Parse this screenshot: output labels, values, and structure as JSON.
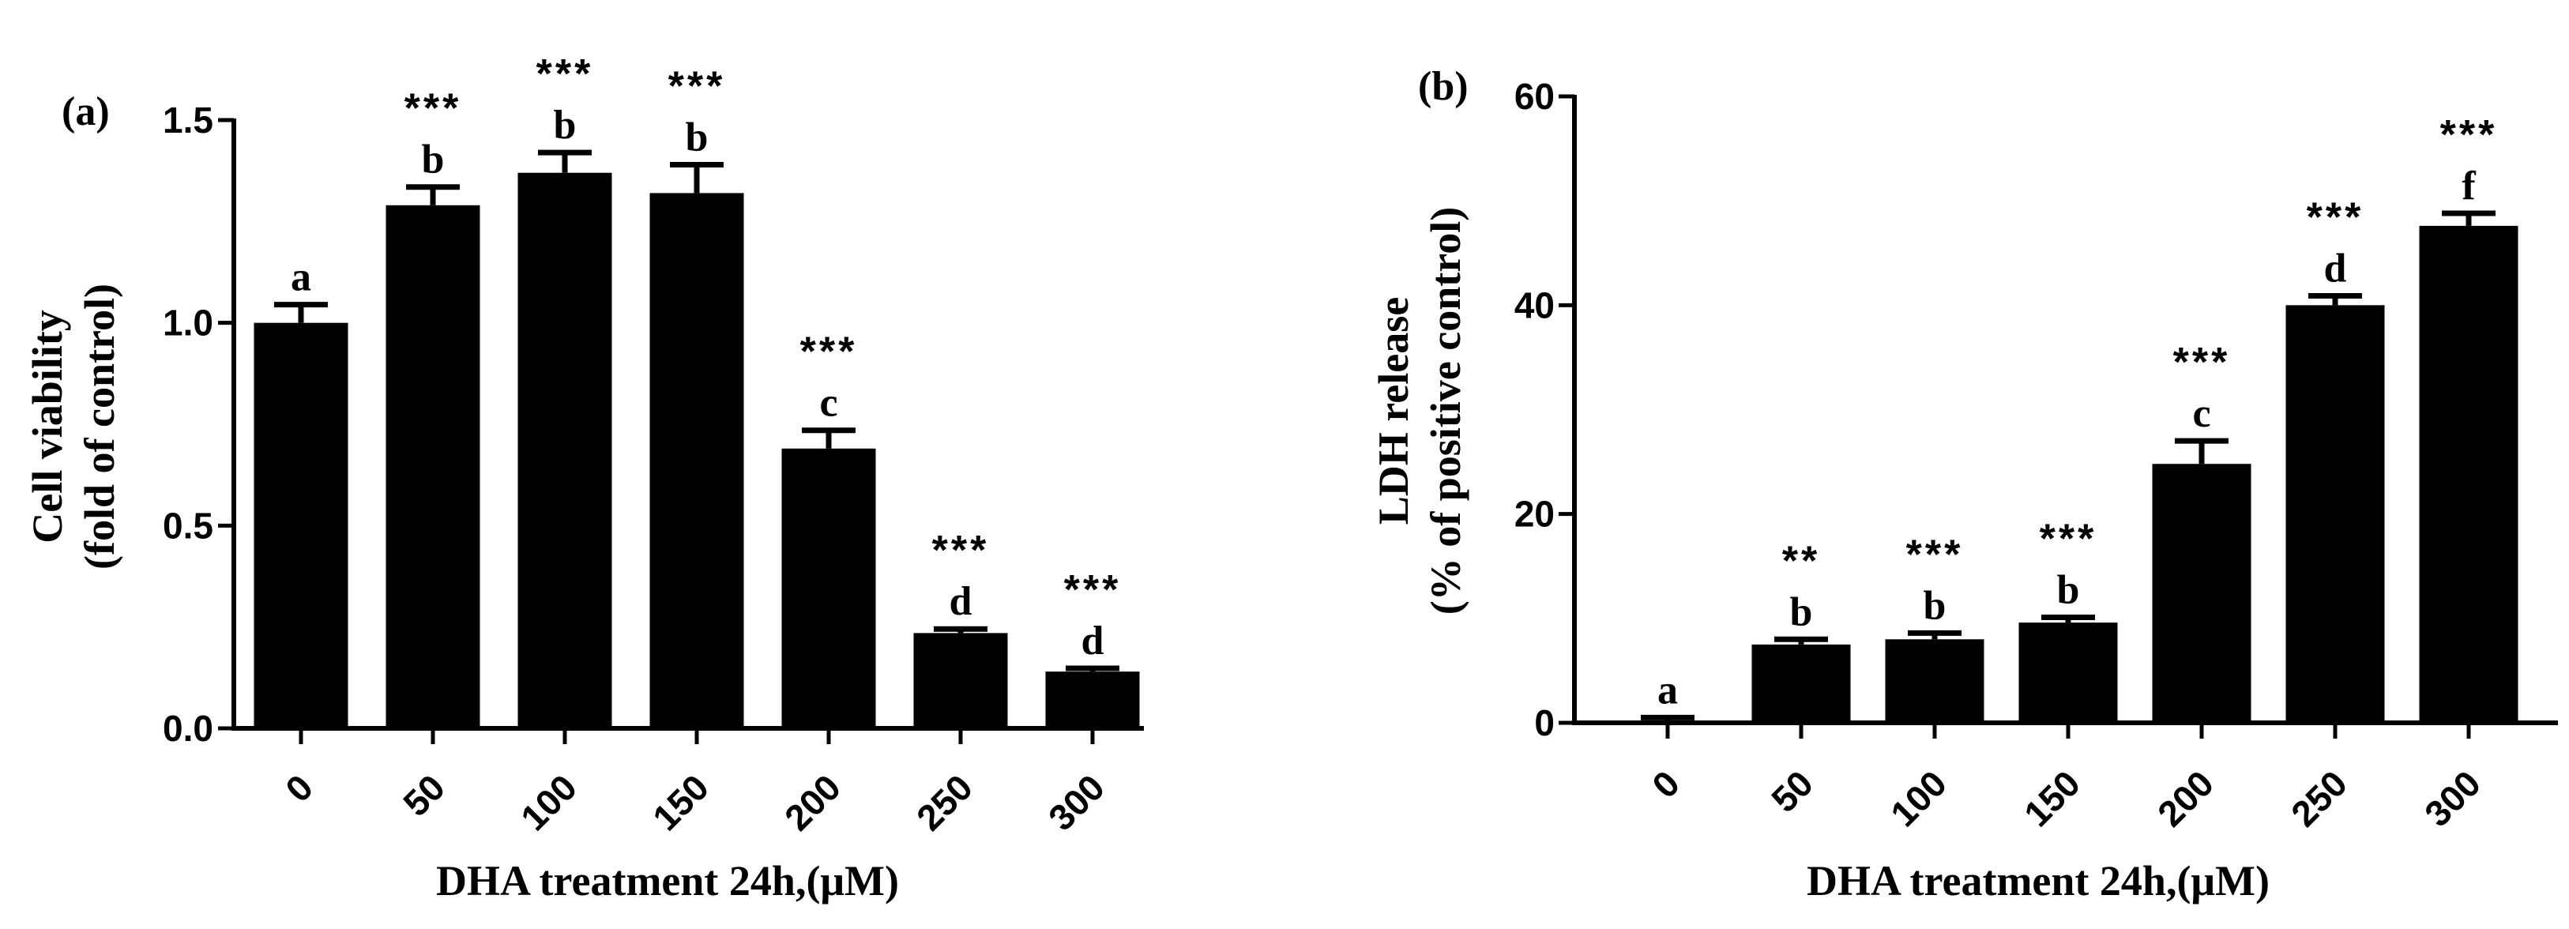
{
  "chart_data": [
    {
      "type": "bar",
      "panel_label": "(a)",
      "categories": [
        "0",
        "50",
        "100",
        "150",
        "200",
        "250",
        "300"
      ],
      "values": [
        1.0,
        1.29,
        1.37,
        1.32,
        0.69,
        0.235,
        0.14
      ],
      "errors": [
        0.045,
        0.045,
        0.05,
        0.07,
        0.045,
        0.01,
        0.008
      ],
      "letters": [
        "a",
        "b",
        "b",
        "b",
        "c",
        "d",
        "d"
      ],
      "significance": [
        "",
        "***",
        "***",
        "***",
        "***",
        "***",
        "***"
      ],
      "ylabel_line1": "Cell viability",
      "ylabel_line2": "(fold of control)",
      "xlabel": "DHA treatment 24h,(μM)",
      "ylim": [
        0,
        1.5
      ],
      "yticks": [
        "0.0",
        "0.5",
        "1.0",
        "1.5"
      ],
      "ytick_values": [
        0,
        0.5,
        1.0,
        1.5
      ],
      "grid": false,
      "bar_color": "#000000"
    },
    {
      "type": "bar",
      "panel_label": "(b)",
      "categories": [
        "0",
        "50",
        "100",
        "150",
        "200",
        "250",
        "300"
      ],
      "values": [
        0.2,
        7.5,
        8.0,
        9.6,
        24.8,
        40.0,
        47.6
      ],
      "errors": [
        0.3,
        0.5,
        0.6,
        0.5,
        2.2,
        0.9,
        1.2
      ],
      "letters": [
        "a",
        "b",
        "b",
        "b",
        "c",
        "d",
        "f"
      ],
      "significance": [
        "",
        "**",
        "***",
        "***",
        "***",
        "***",
        "***"
      ],
      "ylabel_line1": "LDH release",
      "ylabel_line2": "(% of positive control)",
      "xlabel": "DHA treatment 24h,(μM)",
      "ylim": [
        0,
        60
      ],
      "yticks": [
        "0",
        "20",
        "40",
        "60"
      ],
      "ytick_values": [
        0,
        20,
        40,
        60
      ],
      "grid": false,
      "bar_color": "#000000"
    }
  ]
}
